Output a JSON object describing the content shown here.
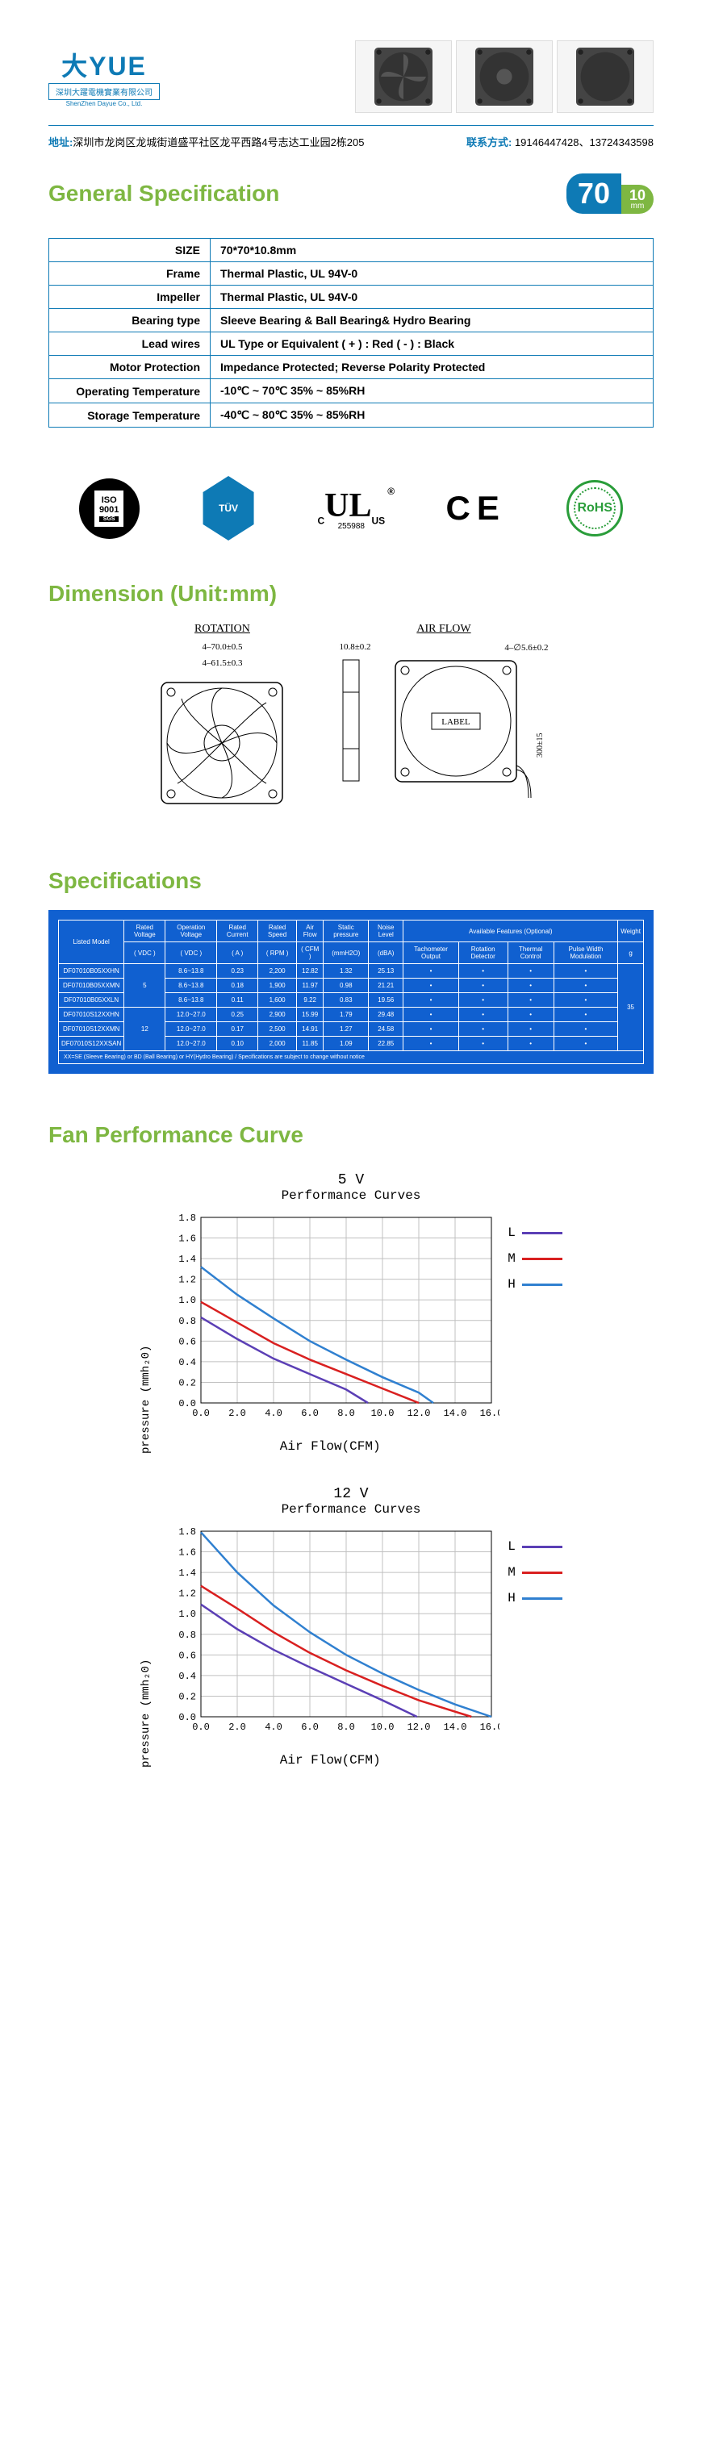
{
  "company": {
    "cn": "深圳大躍電機實業有限公司",
    "en": "ShenZhen Dayue Co., Ltd."
  },
  "contact": {
    "addr_lbl": "地址:",
    "addr": "深圳市龙岗区龙城街道盛平社区龙平西路4号志达工业园2栋205",
    "phone_lbl": "联系方式:",
    "phone": "19146447428、13724343598"
  },
  "sec_general": "General Specification",
  "badge": {
    "size": "70",
    "thk": "10",
    "unit": "mm"
  },
  "spec": [
    {
      "k": "SIZE",
      "v": "70*70*10.8mm"
    },
    {
      "k": "Frame",
      "v": "Thermal Plastic, UL 94V-0"
    },
    {
      "k": "Impeller",
      "v": "Thermal Plastic, UL 94V-0"
    },
    {
      "k": "Bearing type",
      "v": "Sleeve Bearing &  Ball Bearing& Hydro Bearing"
    },
    {
      "k": "Lead wires",
      "v": "UL Type or Equivalent ( + ) : Red ( - ) : Black"
    },
    {
      "k": "Motor Protection",
      "v": "Impedance Protected; Reverse Polarity Protected"
    },
    {
      "k": "Operating Temperature",
      "v": "-10℃ ~ 70℃  35% ~ 85%RH"
    },
    {
      "k": "Storage Temperature",
      "v": "-40℃ ~ 80℃  35% ~ 85%RH"
    }
  ],
  "cert": {
    "iso": "ISO\n9001",
    "iso_s": "SGS",
    "tuv": "TÜV",
    "ul": "UL",
    "ul_sub": "255988",
    "ul_c": "C",
    "ul_us": "US",
    "ul_r": "®",
    "ce": "CE",
    "rohs": "RoHS"
  },
  "sec_dim": "Dimension (Unit:mm)",
  "dim": {
    "rot": "ROTATION",
    "air": "AIR FLOW",
    "label": "LABEL",
    "w": "4–70.0±0.5",
    "hole": "4–61.5±0.3",
    "thk": "10.8±0.2",
    "mh": "4–∅5.6±0.2",
    "wire": "300±15"
  },
  "sec_spec2": "Specifications",
  "spec2": {
    "headers": [
      "Listed\nModel",
      "Rated\nVoltage",
      "Operation\nVoltage",
      "Rated\nCurrent",
      "Rated\nSpeed",
      "Air\nFlow",
      "Static\npressure",
      "Noise\nLevel",
      "Available Features (Optional)",
      "Weight"
    ],
    "sub": [
      "( VDC )",
      "( VDC )",
      "( A )",
      "( RPM )",
      "( CFM )",
      "(mmH2O)",
      "(dBA)",
      "Tachometer\nOutput",
      "Rotation\nDetector",
      "Thermal\nControl",
      "Pulse Width\nModulation",
      "g"
    ],
    "rows": [
      [
        "DF07010B05XXHN",
        "5",
        "8.6~13.8",
        "0.23",
        "2,200",
        "12.82",
        "1.32",
        "25.13",
        "•",
        "•",
        "•",
        "•",
        "35"
      ],
      [
        "DF07010B05XXMN",
        "5",
        "8.6~13.8",
        "0.18",
        "1,900",
        "11.97",
        "0.98",
        "21.21",
        "•",
        "•",
        "•",
        "•",
        "35"
      ],
      [
        "DF07010B05XXLN",
        "5",
        "8.6~13.8",
        "0.11",
        "1,600",
        "9.22",
        "0.83",
        "19.56",
        "•",
        "•",
        "•",
        "•",
        "35"
      ],
      [
        "DF07010S12XXHN",
        "12",
        "12.0~27.0",
        "0.25",
        "2,900",
        "15.99",
        "1.79",
        "29.48",
        "•",
        "•",
        "•",
        "•",
        "35"
      ],
      [
        "DF07010S12XXMN",
        "12",
        "12.0~27.0",
        "0.17",
        "2,500",
        "14.91",
        "1.27",
        "24.58",
        "•",
        "•",
        "•",
        "•",
        "35"
      ],
      [
        "DF07010S12XXSAN",
        "12",
        "12.0~27.0",
        "0.10",
        "2,000",
        "11.85",
        "1.09",
        "22.85",
        "•",
        "•",
        "•",
        "•",
        "35"
      ]
    ],
    "foot": "XX=SE (Sleeve Bearing) or BD (Ball Bearing) or HY(Hydro Bearing) / Specifications are subject to change without notice"
  },
  "sec_perf": "Fan Performance Curve",
  "charts": [
    {
      "v": "5 V",
      "title": "Performance Curves",
      "ylabel": "pressure (mmh₂0)",
      "xlabel": "Air Flow(CFM)",
      "xlim": [
        0,
        16
      ],
      "ylim": [
        0,
        1.8
      ],
      "xstep": 2.0,
      "ystep": 0.2,
      "grid_color": "#c0c0c0",
      "bg": "#ffffff",
      "series": [
        {
          "name": "L",
          "color": "#5b3fb5",
          "pts": [
            [
              0,
              0.83
            ],
            [
              2.0,
              0.62
            ],
            [
              4.0,
              0.43
            ],
            [
              6.0,
              0.28
            ],
            [
              8.0,
              0.13
            ],
            [
              9.2,
              0
            ]
          ]
        },
        {
          "name": "M",
          "color": "#d92020",
          "pts": [
            [
              0,
              0.98
            ],
            [
              2.0,
              0.78
            ],
            [
              4.0,
              0.58
            ],
            [
              6.0,
              0.42
            ],
            [
              8.0,
              0.28
            ],
            [
              10.0,
              0.14
            ],
            [
              12.0,
              0
            ]
          ]
        },
        {
          "name": "H",
          "color": "#3080d0",
          "pts": [
            [
              0,
              1.32
            ],
            [
              2.0,
              1.05
            ],
            [
              4.0,
              0.82
            ],
            [
              6.0,
              0.6
            ],
            [
              8.0,
              0.42
            ],
            [
              10.0,
              0.25
            ],
            [
              12.0,
              0.1
            ],
            [
              12.8,
              0
            ]
          ]
        }
      ]
    },
    {
      "v": "12 V",
      "title": "Performance Curves",
      "ylabel": "pressure (mmh₂0)",
      "xlabel": "Air Flow(CFM)",
      "xlim": [
        0,
        16
      ],
      "ylim": [
        0,
        1.8
      ],
      "xstep": 2.0,
      "ystep": 0.2,
      "grid_color": "#c0c0c0",
      "bg": "#ffffff",
      "series": [
        {
          "name": "L",
          "color": "#5b3fb5",
          "pts": [
            [
              0,
              1.09
            ],
            [
              2.0,
              0.85
            ],
            [
              4.0,
              0.65
            ],
            [
              6.0,
              0.48
            ],
            [
              8.0,
              0.32
            ],
            [
              10.0,
              0.16
            ],
            [
              11.9,
              0
            ]
          ]
        },
        {
          "name": "M",
          "color": "#d92020",
          "pts": [
            [
              0,
              1.27
            ],
            [
              2.0,
              1.05
            ],
            [
              4.0,
              0.82
            ],
            [
              6.0,
              0.62
            ],
            [
              8.0,
              0.45
            ],
            [
              10.0,
              0.3
            ],
            [
              12.0,
              0.16
            ],
            [
              14.9,
              0
            ]
          ]
        },
        {
          "name": "H",
          "color": "#3080d0",
          "pts": [
            [
              0,
              1.79
            ],
            [
              2.0,
              1.4
            ],
            [
              4.0,
              1.08
            ],
            [
              6.0,
              0.82
            ],
            [
              8.0,
              0.6
            ],
            [
              10.0,
              0.42
            ],
            [
              12.0,
              0.26
            ],
            [
              14.0,
              0.12
            ],
            [
              16.0,
              0
            ]
          ]
        }
      ]
    }
  ],
  "legend": [
    "L",
    "M",
    "H"
  ]
}
